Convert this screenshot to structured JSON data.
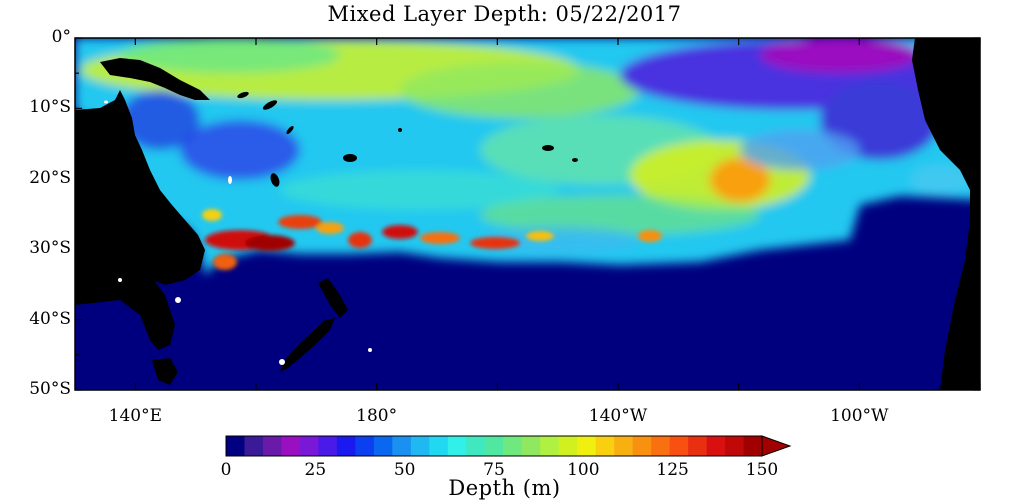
{
  "title": "Mixed Layer Depth: 05/22/2017",
  "map": {
    "lat_labels": [
      "0°",
      "10°S",
      "20°S",
      "30°S",
      "40°S",
      "50°S"
    ],
    "lat_values": [
      0,
      -10,
      -20,
      -30,
      -40,
      -50
    ],
    "lon_labels": [
      "140°E",
      "180°",
      "140°W",
      "100°W"
    ],
    "lon_values": [
      140,
      180,
      220,
      260
    ],
    "extent": {
      "lon_min": 130,
      "lon_max": 280,
      "lat_min": -50,
      "lat_max": 0
    },
    "land_color": "#000000",
    "deep_color": "#00007f"
  },
  "colorbar": {
    "title": "Depth (m)",
    "min": 0,
    "max": 150,
    "step": 5,
    "tick_labels": [
      "0",
      "25",
      "50",
      "75",
      "100",
      "125",
      "150"
    ],
    "tick_values": [
      0,
      25,
      50,
      75,
      100,
      125,
      150
    ],
    "colors": [
      "#000080",
      "#3a1a96",
      "#6a1aa8",
      "#9a10c0",
      "#7a18d8",
      "#4a1ae8",
      "#1a1af0",
      "#0a40f0",
      "#0a68f0",
      "#1a90f0",
      "#20b8f0",
      "#20d8f0",
      "#30f0e8",
      "#40e8c0",
      "#50e8a0",
      "#70e880",
      "#90e860",
      "#b0f040",
      "#d0f020",
      "#f0f010",
      "#f8d010",
      "#f8b010",
      "#f89010",
      "#f87010",
      "#f85010",
      "#e83010",
      "#d81010",
      "#c00808",
      "#a00000"
    ]
  }
}
